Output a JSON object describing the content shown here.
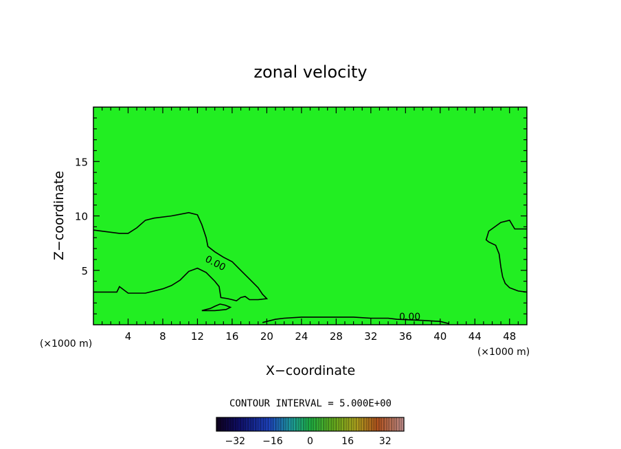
{
  "chart_data": {
    "type": "heatmap",
    "title": "zonal velocity",
    "xlabel": "X−coordinate",
    "ylabel": "Z−coordinate",
    "x_unit_left": "(×1000 m)",
    "x_unit_right": "(×1000 m)",
    "xlim": [
      0,
      50
    ],
    "ylim": [
      0,
      20
    ],
    "x_ticks": [
      4,
      8,
      12,
      16,
      20,
      24,
      28,
      32,
      36,
      40,
      44,
      48
    ],
    "y_ticks": [
      5,
      10,
      15
    ],
    "background_color": "#22ee22",
    "contour_interval_text": "CONTOUR INTERVAL = 5.000E+00",
    "contour_labels": [
      "0.00",
      "0.00"
    ],
    "colorbar": {
      "range": [
        -40,
        40
      ],
      "interval": 5,
      "tick_labels": [
        "−32",
        "−16",
        "0",
        "16",
        "32"
      ],
      "tick_values": [
        -32,
        -16,
        0,
        16,
        32
      ]
    },
    "zero_contours": [
      {
        "name": "upper-left",
        "points": [
          [
            0,
            8.7
          ],
          [
            1,
            8.6
          ],
          [
            3,
            8.4
          ],
          [
            4,
            8.4
          ],
          [
            5,
            8.9
          ],
          [
            6,
            9.6
          ],
          [
            7,
            9.8
          ],
          [
            9,
            10.0
          ],
          [
            11,
            10.3
          ],
          [
            12,
            10.1
          ],
          [
            12.5,
            9.2
          ],
          [
            13,
            8.0
          ],
          [
            13.2,
            7.2
          ],
          [
            14,
            6.7
          ],
          [
            15,
            6.2
          ],
          [
            16,
            5.8
          ],
          [
            17,
            5.0
          ],
          [
            18,
            4.2
          ],
          [
            19,
            3.4
          ],
          [
            19.5,
            2.8
          ],
          [
            20,
            2.4
          ],
          [
            19,
            2.3
          ],
          [
            18,
            2.3
          ],
          [
            17.5,
            2.6
          ],
          [
            17,
            2.5
          ],
          [
            16.5,
            2.2
          ],
          [
            16,
            2.3
          ],
          [
            15.5,
            2.4
          ],
          [
            14.7,
            2.5
          ],
          [
            14.5,
            3.5
          ],
          [
            14,
            4.0
          ],
          [
            13,
            4.8
          ],
          [
            12,
            5.2
          ],
          [
            11,
            4.9
          ],
          [
            10,
            4.1
          ],
          [
            9,
            3.6
          ],
          [
            8,
            3.3
          ],
          [
            6,
            2.9
          ],
          [
            4,
            2.9
          ],
          [
            3,
            3.5
          ],
          [
            2.7,
            3.0
          ],
          [
            1,
            3.0
          ],
          [
            0,
            3.0
          ]
        ]
      },
      {
        "name": "small-island",
        "points": [
          [
            12.5,
            1.3
          ],
          [
            13.5,
            1.5
          ],
          [
            14,
            1.7
          ],
          [
            14.6,
            1.9
          ],
          [
            15.2,
            1.8
          ],
          [
            15.8,
            1.6
          ],
          [
            15.3,
            1.4
          ],
          [
            14,
            1.3
          ],
          [
            12.5,
            1.3
          ]
        ]
      },
      {
        "name": "bottom",
        "points": [
          [
            19.5,
            0.2
          ],
          [
            20,
            0.3
          ],
          [
            21,
            0.5
          ],
          [
            22,
            0.6
          ],
          [
            24,
            0.7
          ],
          [
            27,
            0.7
          ],
          [
            30,
            0.7
          ],
          [
            32,
            0.6
          ],
          [
            34,
            0.6
          ],
          [
            35,
            0.5
          ],
          [
            38,
            0.4
          ],
          [
            40,
            0.3
          ],
          [
            41,
            0.1
          ]
        ]
      },
      {
        "name": "right",
        "points": [
          [
            50,
            3.0
          ],
          [
            49,
            3.1
          ],
          [
            48,
            3.4
          ],
          [
            47.5,
            3.8
          ],
          [
            47.2,
            4.4
          ],
          [
            47,
            5.3
          ],
          [
            46.8,
            6.5
          ],
          [
            46.4,
            7.3
          ],
          [
            45.6,
            7.6
          ],
          [
            45.3,
            7.8
          ],
          [
            45.6,
            8.6
          ],
          [
            46.3,
            9.0
          ],
          [
            47,
            9.4
          ],
          [
            48,
            9.6
          ],
          [
            48.3,
            9.2
          ],
          [
            48.6,
            8.8
          ],
          [
            50,
            8.8
          ]
        ]
      }
    ]
  }
}
